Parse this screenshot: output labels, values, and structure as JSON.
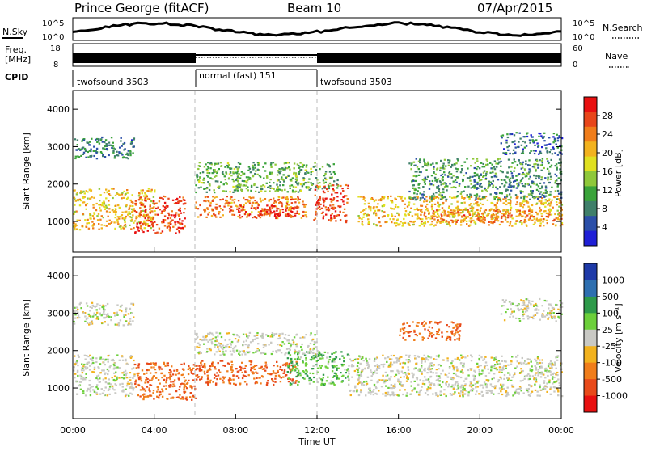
{
  "header": {
    "station": "Prince George (fitACF)",
    "beam": "Beam 10",
    "date": "07/Apr/2015"
  },
  "noise_panel": {
    "left_label": "N.Sky",
    "right_label": "N.Search",
    "left_ticks": [
      "10^5",
      "10^0"
    ],
    "right_ticks": [
      "10^5",
      "10^0"
    ]
  },
  "freq_panel": {
    "left_label_1": "Freq.",
    "left_label_2": "[MHz]",
    "right_label": "Nave",
    "left_ticks": [
      "18",
      "8"
    ],
    "right_ticks": [
      "60",
      "0"
    ]
  },
  "cpid": {
    "label": "CPID",
    "segments": [
      {
        "start_ut": 0,
        "end_ut": 6,
        "text": "twofsound 3503"
      },
      {
        "start_ut": 6,
        "end_ut": 12,
        "text": "normal (fast) 151"
      },
      {
        "start_ut": 12,
        "end_ut": 24,
        "text": "twofsound 3503"
      }
    ]
  },
  "chart_data": [
    {
      "type": "heatmap",
      "title": "Power",
      "ylabel": "Slant Range [km]",
      "xlabel": "Time UT",
      "xlim": [
        0,
        24
      ],
      "ylim": [
        180,
        4500
      ],
      "yticks": [
        1000,
        2000,
        3000,
        4000
      ],
      "colorbar": {
        "label": "Power [dB]",
        "range": [
          0,
          32
        ],
        "ticks": [
          "4",
          "8",
          "12",
          "16",
          "20",
          "24",
          "28"
        ],
        "colors": [
          "#1f1fd6",
          "#2b4fa8",
          "#3f7f6a",
          "#3aa33a",
          "#8fc83a",
          "#e0e020",
          "#f2b21e",
          "#f07d1a",
          "#e8461a",
          "#e81010"
        ]
      },
      "regions": [
        {
          "t0": 0.0,
          "t1": 4.0,
          "r0": 800,
          "r1": 1900,
          "power": 20
        },
        {
          "t0": 3.0,
          "t1": 5.5,
          "r0": 700,
          "r1": 1700,
          "power": 28
        },
        {
          "t0": 6.0,
          "t1": 11.5,
          "r0": 1100,
          "r1": 1700,
          "power": 24
        },
        {
          "t0": 8.0,
          "t1": 11.0,
          "r0": 1150,
          "r1": 1450,
          "power": 30
        },
        {
          "t0": 11.8,
          "t1": 13.5,
          "r0": 1000,
          "r1": 2000,
          "power": 28
        },
        {
          "t0": 14.0,
          "t1": 24.0,
          "r0": 900,
          "r1": 1700,
          "power": 20
        },
        {
          "t0": 17.0,
          "t1": 24.0,
          "r0": 1000,
          "r1": 1350,
          "power": 24
        },
        {
          "t0": 0.0,
          "t1": 3.0,
          "r0": 2700,
          "r1": 3300,
          "power": 8
        },
        {
          "t0": 6.0,
          "t1": 13.0,
          "r0": 1800,
          "r1": 2600,
          "power": 12
        },
        {
          "t0": 16.5,
          "t1": 24.0,
          "r0": 1600,
          "r1": 2700,
          "power": 10
        },
        {
          "t0": 21.0,
          "t1": 24.0,
          "r0": 2800,
          "r1": 3400,
          "power": 6
        }
      ]
    },
    {
      "type": "heatmap",
      "title": "Velocity",
      "ylabel": "Slant Range [km]",
      "xlabel": "Time UT",
      "xlim": [
        0,
        24
      ],
      "ylim": [
        180,
        4500
      ],
      "xticks": [
        "00:00",
        "04:00",
        "08:00",
        "12:00",
        "16:00",
        "20:00",
        "00:00"
      ],
      "yticks": [
        1000,
        2000,
        3000,
        4000
      ],
      "colorbar": {
        "label": "Velocity [m s⁻¹]",
        "ticks": [
          "1000",
          "500",
          "100",
          "25",
          "-25",
          "-100",
          "-500",
          "-1000"
        ],
        "colors": [
          "#1e3aa8",
          "#2e6fb0",
          "#2e9a4a",
          "#6ccf3a",
          "#c9c9c4",
          "#f2b21e",
          "#f07d1a",
          "#e84a1a",
          "#e81010"
        ]
      },
      "regions": [
        {
          "t0": 0.0,
          "t1": 3.0,
          "r0": 800,
          "r1": 1900,
          "velocity": 0
        },
        {
          "t0": 3.0,
          "t1": 6.0,
          "r0": 700,
          "r1": 1700,
          "velocity": -300
        },
        {
          "t0": 6.0,
          "t1": 11.0,
          "r0": 1100,
          "r1": 1750,
          "velocity": -300
        },
        {
          "t0": 10.5,
          "t1": 13.5,
          "r0": 1100,
          "r1": 2000,
          "velocity": 60
        },
        {
          "t0": 13.5,
          "t1": 24.0,
          "r0": 800,
          "r1": 1900,
          "velocity": 0
        },
        {
          "t0": 0.0,
          "t1": 3.0,
          "r0": 2700,
          "r1": 3300,
          "velocity": 0
        },
        {
          "t0": 6.0,
          "t1": 12.0,
          "r0": 1900,
          "r1": 2500,
          "velocity": 0
        },
        {
          "t0": 16.0,
          "t1": 19.0,
          "r0": 2300,
          "r1": 2800,
          "velocity": -300
        },
        {
          "t0": 21.0,
          "t1": 24.0,
          "r0": 2800,
          "r1": 3400,
          "velocity": 0
        }
      ]
    }
  ]
}
